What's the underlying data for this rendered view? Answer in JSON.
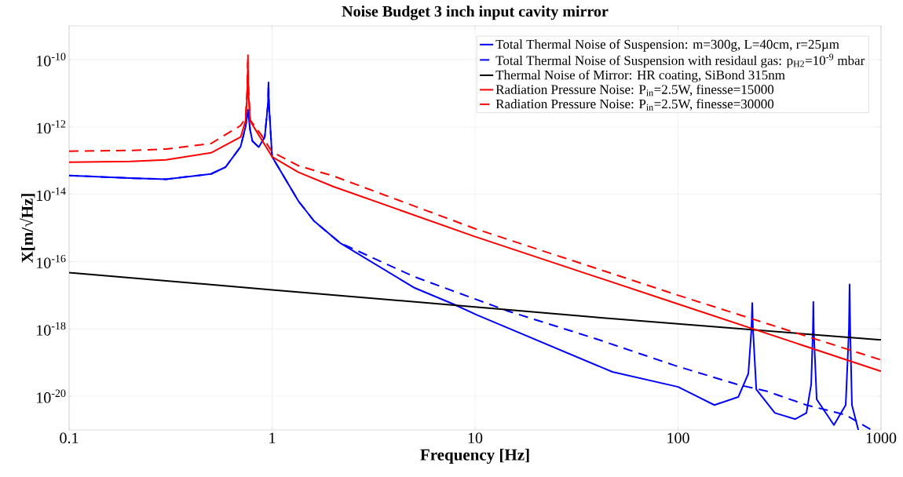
{
  "chart_data": {
    "type": "line",
    "title": "Noise Budget 3 inch input cavity mirror",
    "xlabel": "Frequency [Hz]",
    "ylabel": "X[m/√Hz]",
    "log": "xy",
    "grid": true,
    "legend": "top right",
    "marker": "none",
    "xlim": [
      0.1,
      1000
    ],
    "ylim": [
      1e-21,
      1e-09
    ],
    "xticks": [
      0.1,
      1,
      10,
      100,
      1000
    ],
    "yticks": [
      {
        "value": 1e-20,
        "label": "10$^{-20}$"
      },
      {
        "value": 1e-18,
        "label": "10$^{-18}$"
      },
      {
        "value": 1e-16,
        "label": "10$^{-16}$"
      },
      {
        "value": 1e-14,
        "label": "10$^{-14}$"
      },
      {
        "value": 1e-12,
        "label": "10$^{-12}$"
      },
      {
        "value": 1e-10,
        "label": "10$^{-10}$"
      }
    ],
    "series": [
      {
        "name": "Total Thermal Noise of Suspension: m=300g, L=40cm, r=25µm",
        "color": "#0000ff",
        "line_style": "solid",
        "x": [
          0.1,
          0.2,
          0.3,
          0.5,
          0.59,
          0.7,
          0.74,
          0.76,
          0.78,
          0.8,
          0.86,
          0.92,
          0.955,
          0.96,
          0.965,
          1,
          1.35,
          1.61,
          2.16,
          4.99,
          7.8,
          10.2,
          47.5,
          100,
          151,
          198,
          222,
          230,
          232,
          234,
          243,
          300,
          378,
          429,
          453,
          462,
          464,
          466,
          482,
          586,
          670,
          695,
          700,
          705,
          719,
          773
        ],
        "values": [
          3.6e-14,
          3e-14,
          2.8e-14,
          4e-14,
          6.4e-14,
          2.6e-13,
          1e-12,
          3.2e-12,
          8e-13,
          3.8e-13,
          2.5e-13,
          5e-13,
          5e-12,
          2.1e-11,
          5e-12,
          1.3e-13,
          6.2e-15,
          1.6e-15,
          3.6e-16,
          1.7e-17,
          5.5e-18,
          2.6e-18,
          5.3e-20,
          1.9e-20,
          5.5e-21,
          9.5e-21,
          4.7e-20,
          1e-18,
          5.9e-18,
          1e-18,
          1.6e-20,
          3.2e-21,
          2.1e-21,
          3.2e-21,
          2.3e-20,
          1e-18,
          6.4e-18,
          1e-18,
          8.1e-21,
          1.4e-21,
          5.5e-21,
          1e-18,
          2.1e-17,
          1e-18,
          5.5e-21,
          1e-21
        ]
      },
      {
        "name": "Total Thermal Noise of Suspension with residaul gas: p$_{H2}$=10$^{-9}$ mbar",
        "color": "#0000ff",
        "line_style": "dashed",
        "x": [
          0.1,
          0.2,
          0.3,
          0.5,
          0.59,
          0.7,
          0.74,
          0.76,
          0.78,
          0.8,
          0.86,
          0.92,
          0.955,
          0.96,
          0.965,
          1,
          1.35,
          1.61,
          2.16,
          4.99,
          14.5,
          39.8,
          97,
          198,
          275,
          429,
          670,
          897
        ],
        "values": [
          3.6e-14,
          3e-14,
          2.8e-14,
          4e-14,
          6.4e-14,
          2.6e-13,
          1e-12,
          3.2e-12,
          8e-13,
          3.8e-13,
          2.5e-13,
          5e-13,
          5e-12,
          2.1e-11,
          5e-12,
          1.3e-13,
          6.2e-15,
          1.6e-15,
          3.6e-16,
          3.6e-17,
          3.4e-18,
          5e-19,
          8.1e-20,
          2.2e-20,
          1.4e-20,
          5.5e-21,
          2.8e-21,
          1e-21
        ]
      },
      {
        "name": "Thermal Noise of Mirror: HR coating, SiBond 315nm",
        "color": "#000000",
        "line_style": "solid",
        "x": [
          0.1,
          1,
          10,
          39.8,
          1000
        ],
        "values": [
          4.7e-17,
          1.45e-17,
          4.5e-18,
          2.2e-18,
          4.7e-19
        ]
      },
      {
        "name": "Radiation Pressure Noise: P$_{in}$=2.5W, finesse=15000",
        "color": "#ff0000",
        "line_style": "solid",
        "x": [
          0.1,
          0.2,
          0.3,
          0.5,
          0.7,
          0.74,
          0.755,
          0.76,
          0.765,
          0.78,
          0.84,
          1,
          1.35,
          2,
          10,
          100,
          1000
        ],
        "values": [
          8.9e-14,
          9.5e-14,
          1.05e-13,
          1.7e-13,
          5e-13,
          1.5e-12,
          1e-11,
          8e-11,
          1e-11,
          1.5e-12,
          7.2e-13,
          1.3e-13,
          4.5e-14,
          1.7e-14,
          5.5e-16,
          5.5e-18,
          5.5e-20
        ]
      },
      {
        "name": "Radiation Pressure Noise: P$_{in}$=2.5W, finesse=30000",
        "color": "#ff0000",
        "line_style": "dashed",
        "x": [
          0.1,
          0.2,
          0.3,
          0.5,
          0.7,
          0.74,
          0.755,
          0.76,
          0.765,
          0.78,
          0.89,
          1,
          1.35,
          2,
          10,
          100,
          1000
        ],
        "values": [
          1.9e-13,
          2e-13,
          2.2e-13,
          3.2e-13,
          1.1e-12,
          1.8e-12,
          1.5e-11,
          1.5e-10,
          1.5e-11,
          1.6e-12,
          5.5e-13,
          1.8e-13,
          7e-14,
          3.5e-14,
          9.5e-16,
          1e-17,
          1.2e-19
        ]
      }
    ]
  }
}
